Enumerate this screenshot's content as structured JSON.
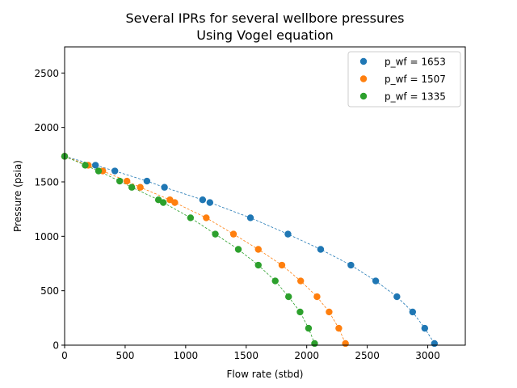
{
  "chart_data": {
    "type": "scatter",
    "title": "Several IPRs for several wellbore pressures",
    "subtitle": "Using Vogel equation",
    "xlabel": "Flow rate (stbd)",
    "ylabel": "Pressure (psia)",
    "xlim": [
      0,
      3310
    ],
    "ylim": [
      0,
      2740
    ],
    "xticks": [
      0,
      500,
      1000,
      1500,
      2000,
      2500,
      3000
    ],
    "yticks": [
      0,
      500,
      1000,
      1500,
      2000,
      2500
    ],
    "legend_position": "top-right",
    "series": [
      {
        "name": "p_wf = 1653",
        "color": "#1f77b4",
        "x": [
          0,
          255,
          415,
          680,
          825,
          1140,
          1200,
          1535,
          1845,
          2115,
          2365,
          2570,
          2745,
          2875,
          2975,
          3055
        ],
        "y": [
          1735,
          1653,
          1600,
          1507,
          1450,
          1335,
          1310,
          1170,
          1020,
          880,
          735,
          590,
          445,
          305,
          155,
          15
        ]
      },
      {
        "name": "p_wf = 1507",
        "color": "#ff7f0e",
        "x": [
          0,
          195,
          315,
          515,
          625,
          870,
          910,
          1170,
          1395,
          1600,
          1795,
          1950,
          2085,
          2185,
          2265,
          2320
        ],
        "y": [
          1735,
          1653,
          1600,
          1507,
          1450,
          1335,
          1310,
          1170,
          1020,
          880,
          735,
          590,
          445,
          305,
          155,
          15
        ]
      },
      {
        "name": "p_wf = 1335",
        "color": "#2ca02c",
        "x": [
          0,
          170,
          280,
          455,
          555,
          775,
          815,
          1040,
          1245,
          1435,
          1600,
          1740,
          1850,
          1945,
          2015,
          2065
        ],
        "y": [
          1735,
          1653,
          1600,
          1507,
          1450,
          1335,
          1310,
          1170,
          1020,
          880,
          735,
          590,
          445,
          305,
          155,
          15
        ]
      }
    ]
  }
}
